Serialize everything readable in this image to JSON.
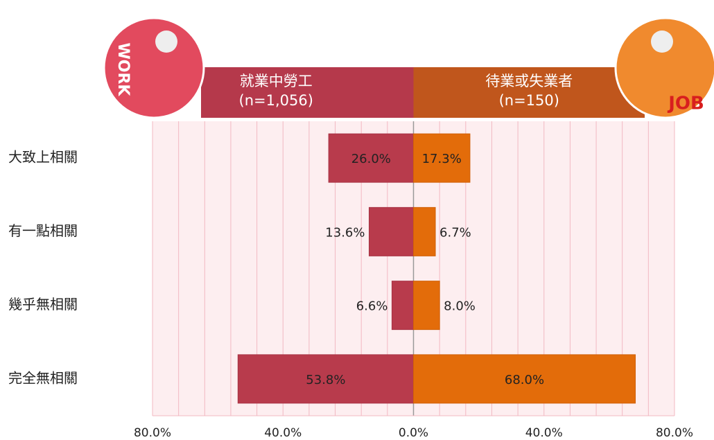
{
  "chart_data": {
    "type": "butterfly_bar",
    "categories": [
      "大致上相關",
      "有一點相關",
      "幾乎無相關",
      "完全無相關"
    ],
    "series": [
      {
        "name": "就業中勞工",
        "n_label": "(n=1,056)",
        "side": "left",
        "color": "#b83b4c",
        "header_color": "#b5394b",
        "icon_text": "WORK",
        "values": [
          26.0,
          13.6,
          6.6,
          53.8
        ],
        "value_labels": [
          "26.0%",
          "13.6%",
          "6.6%",
          "53.8%"
        ]
      },
      {
        "name": "待業或失業者",
        "n_label": "(n=150)",
        "side": "right",
        "color": "#e36c0a",
        "header_color": "#c0561c",
        "icon_text": "JOB",
        "values": [
          17.3,
          6.7,
          8.0,
          68.0
        ],
        "value_labels": [
          "17.3%",
          "6.7%",
          "8.0%",
          "68.0%"
        ]
      }
    ],
    "xlim": [
      -80,
      80
    ],
    "xticks": [
      {
        "value": -80,
        "label": "80.0%"
      },
      {
        "value": -40,
        "label": "40.0%"
      },
      {
        "value": 0,
        "label": "0.0%"
      },
      {
        "value": 40,
        "label": "40.0%"
      },
      {
        "value": 80,
        "label": "80.0%"
      }
    ],
    "xgrid": [
      -72,
      -64,
      -56,
      -48,
      -32,
      -24,
      -16,
      -8,
      8,
      16,
      24,
      32,
      48,
      56,
      64,
      72
    ],
    "grid": true
  }
}
